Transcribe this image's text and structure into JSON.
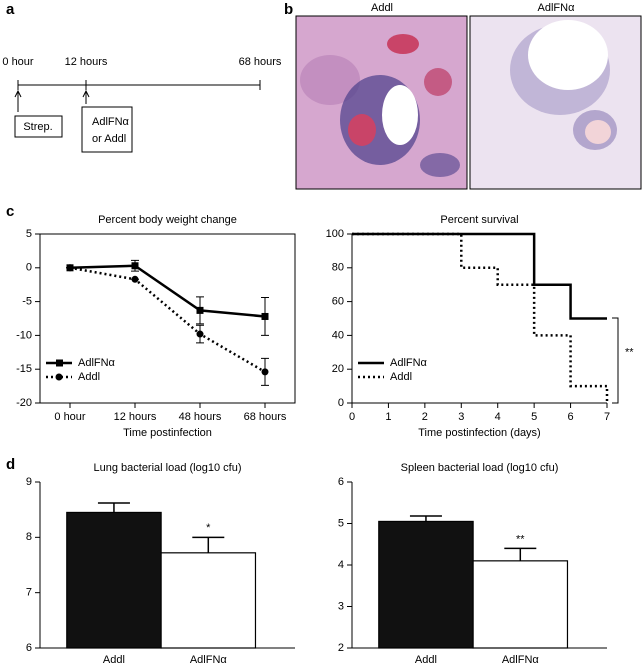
{
  "panel_labels": [
    "a",
    "b",
    "c",
    "d"
  ],
  "timeline": {
    "times": [
      "0 hour",
      "12 hours",
      "68 hours"
    ],
    "events": [
      [
        "Strep."
      ],
      [
        "AdlFNα",
        "or Addl"
      ]
    ]
  },
  "image_labels": [
    "Addl",
    "AdlFNα"
  ],
  "chart_data": [
    {
      "type": "line",
      "title": "Percent body weight change",
      "x_label": "Time postinfection",
      "categories": [
        "0 hour",
        "12 hours",
        "48 hours",
        "68 hours"
      ],
      "series": [
        {
          "name": "AdlFNα",
          "color": "#000000",
          "line_style": "solid",
          "marker": "square",
          "values": [
            0,
            0.3,
            -6.3,
            -7.2
          ],
          "errors": [
            0,
            0.8,
            2,
            2.8
          ]
        },
        {
          "name": "Addl",
          "color": "#000000",
          "line_style": "dotted",
          "marker": "circle",
          "values": [
            0,
            -1.7,
            -9.8,
            -15.4
          ],
          "errors": [
            0,
            0,
            1.3,
            2
          ]
        }
      ],
      "ylim": [
        -20,
        5
      ],
      "yticks": [
        -20,
        -15,
        -10,
        -5,
        0,
        5
      ],
      "legend": "lower left"
    },
    {
      "type": "step",
      "title": "Percent survival",
      "x_label": "Time postinfection (days)",
      "series": [
        {
          "name": "AdlFNα",
          "color": "#000000",
          "line_style": "solid",
          "x": [
            0,
            5,
            6,
            7
          ],
          "values": [
            100,
            70,
            50,
            50
          ]
        },
        {
          "name": "Addl",
          "color": "#000000",
          "line_style": "dotted",
          "x": [
            0,
            3,
            4,
            5,
            6,
            7
          ],
          "values": [
            100,
            80,
            70,
            40,
            10,
            0
          ]
        }
      ],
      "xlim": [
        0,
        7
      ],
      "xticks": [
        0,
        1,
        2,
        3,
        4,
        5,
        6,
        7
      ],
      "ylim": [
        0,
        100
      ],
      "yticks": [
        0,
        20,
        40,
        60,
        80,
        100
      ],
      "legend": "lower left",
      "annotation": "**"
    },
    {
      "type": "bar",
      "title": "Lung bacterial load (log10 cfu)",
      "categories": [
        "Addl",
        "AdlFNα"
      ],
      "values": [
        8.45,
        7.72
      ],
      "errors": [
        0.17,
        0.28
      ],
      "colors": [
        "#111111",
        "#ffffff"
      ],
      "ylim": [
        6,
        9
      ],
      "yticks": [
        6,
        7,
        8,
        9
      ],
      "annotation": "*"
    },
    {
      "type": "bar",
      "title": "Spleen bacterial load (log10 cfu)",
      "categories": [
        "Addl",
        "AdlFNα"
      ],
      "values": [
        5.05,
        4.1
      ],
      "errors": [
        0.13,
        0.3
      ],
      "colors": [
        "#111111",
        "#ffffff"
      ],
      "ylim": [
        2,
        6
      ],
      "yticks": [
        2,
        3,
        4,
        5,
        6
      ],
      "annotation": "**"
    }
  ]
}
